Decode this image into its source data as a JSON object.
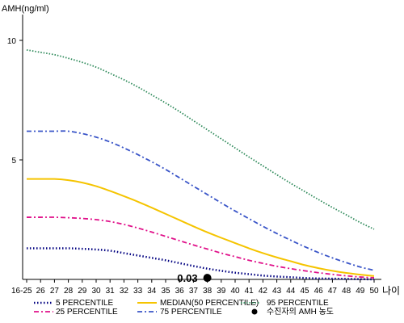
{
  "chart_data": {
    "type": "line",
    "ylabel": "AMH(ng/ml)",
    "xlabel": "나이",
    "y_ticks": [
      "10",
      "5"
    ],
    "ylim": [
      0,
      11
    ],
    "categories": [
      "16-25",
      "26",
      "27",
      "28",
      "29",
      "30",
      "31",
      "32",
      "33",
      "34",
      "35",
      "36",
      "37",
      "38",
      "39",
      "40",
      "41",
      "42",
      "43",
      "44",
      "45",
      "46",
      "47",
      "48",
      "49",
      "50"
    ],
    "series": [
      {
        "name": "5 PERCENTILE",
        "key": "p5",
        "color": "#000080",
        "dash": "1.5 2.5",
        "width": 2.5,
        "values": [
          1.3,
          1.3,
          1.3,
          1.3,
          1.28,
          1.25,
          1.2,
          1.1,
          1.0,
          0.9,
          0.8,
          0.68,
          0.56,
          0.45,
          0.36,
          0.28,
          0.22,
          0.16,
          0.12,
          0.09,
          0.06,
          0.04,
          0.03,
          0.02,
          0.01,
          0.0
        ]
      },
      {
        "name": "25 PERCENTILE",
        "key": "p25",
        "color": "#e0118a",
        "dash": "6 3 2 3",
        "width": 1.8,
        "values": [
          2.6,
          2.6,
          2.6,
          2.58,
          2.55,
          2.5,
          2.42,
          2.3,
          2.15,
          1.98,
          1.8,
          1.62,
          1.44,
          1.27,
          1.1,
          0.95,
          0.8,
          0.67,
          0.55,
          0.45,
          0.36,
          0.28,
          0.21,
          0.15,
          0.1,
          0.07
        ]
      },
      {
        "name": "MEDIAN(50 PERCENTILE)",
        "key": "p50",
        "color": "#f5c400",
        "dash": "",
        "width": 2,
        "values": [
          4.2,
          4.2,
          4.2,
          4.15,
          4.05,
          3.9,
          3.7,
          3.48,
          3.25,
          3.0,
          2.74,
          2.48,
          2.22,
          1.97,
          1.74,
          1.52,
          1.3,
          1.1,
          0.92,
          0.76,
          0.6,
          0.47,
          0.36,
          0.27,
          0.2,
          0.14
        ]
      },
      {
        "name": "75 PERCENTILE",
        "key": "p75",
        "color": "#3a55c8",
        "dash": "6 3 2 3",
        "width": 1.8,
        "values": [
          6.2,
          6.2,
          6.2,
          6.2,
          6.1,
          5.95,
          5.75,
          5.5,
          5.22,
          4.92,
          4.6,
          4.25,
          3.9,
          3.55,
          3.2,
          2.86,
          2.54,
          2.22,
          1.92,
          1.64,
          1.37,
          1.12,
          0.9,
          0.7,
          0.52,
          0.38
        ]
      },
      {
        "name": "95 PERCENTILE",
        "key": "p95",
        "color": "#2e8a5a",
        "dash": "1.5 2",
        "width": 1.8,
        "values": [
          9.6,
          9.5,
          9.4,
          9.25,
          9.08,
          8.88,
          8.62,
          8.35,
          8.05,
          7.72,
          7.38,
          7.02,
          6.64,
          6.26,
          5.88,
          5.5,
          5.12,
          4.75,
          4.38,
          4.02,
          3.68,
          3.34,
          3.01,
          2.7,
          2.38,
          2.1
        ]
      }
    ],
    "marker": {
      "label": "수진자의 AMH 농도",
      "x": "38",
      "y": 0.03,
      "value_text": "0.03"
    },
    "legend": {
      "position": "bottom",
      "order": [
        "p5",
        "p25",
        "p50",
        "p75",
        "p95",
        "marker"
      ]
    }
  }
}
